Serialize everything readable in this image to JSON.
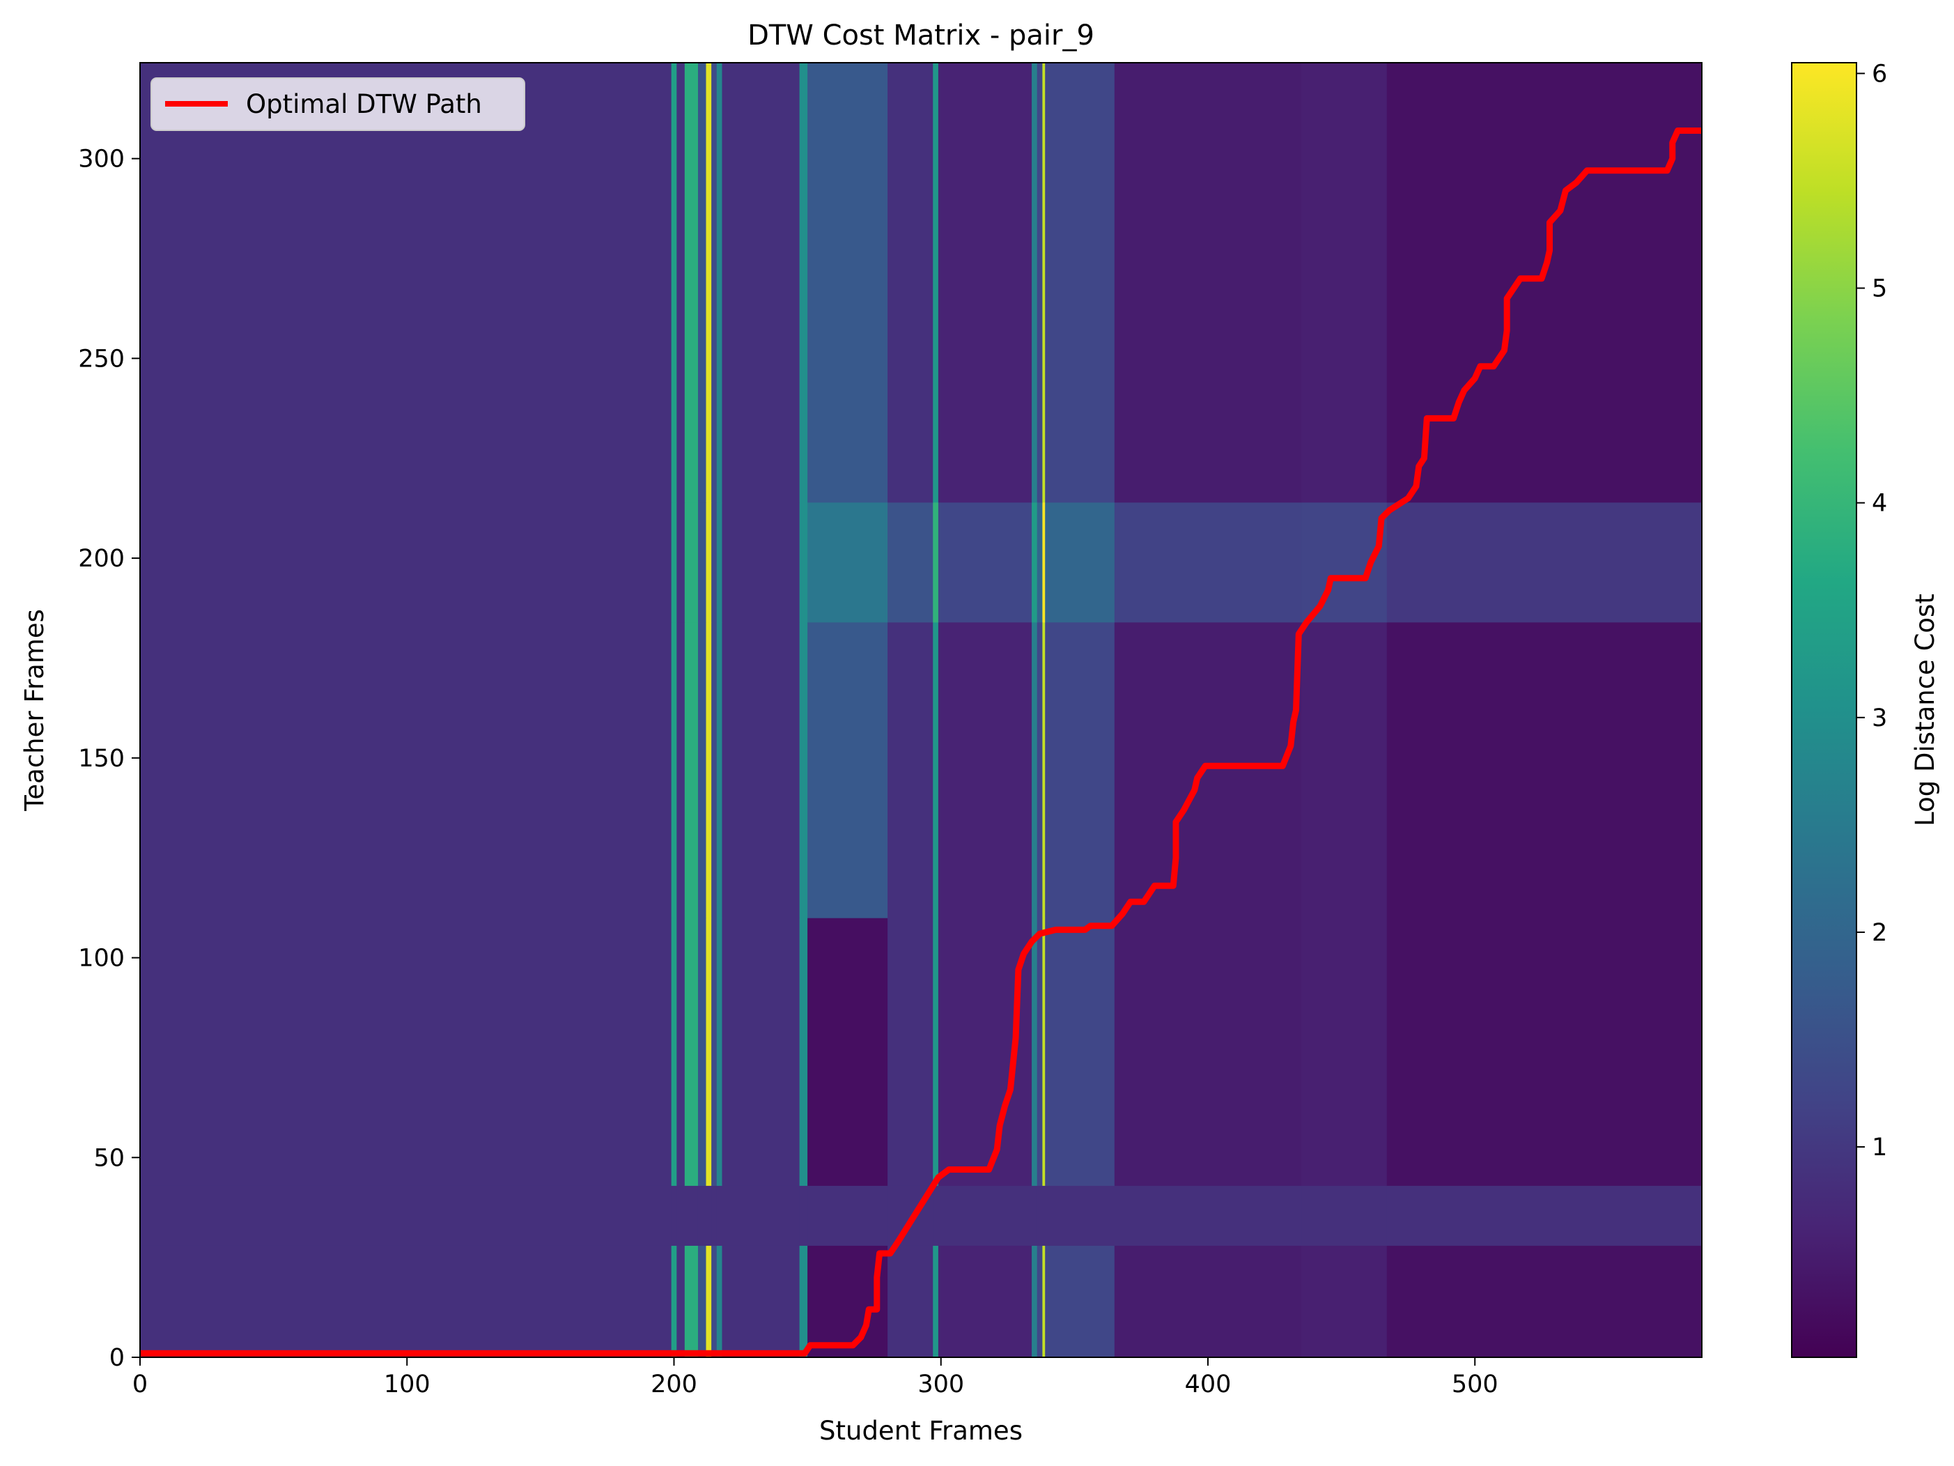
{
  "chart_data": {
    "type": "heatmap",
    "title": "DTW Cost Matrix - pair_9",
    "xlabel": "Student Frames",
    "ylabel": "Teacher Frames",
    "xlim": [
      0,
      585
    ],
    "ylim": [
      0,
      324
    ],
    "x_ticks": [
      0,
      100,
      200,
      300,
      400,
      500
    ],
    "y_ticks": [
      0,
      50,
      100,
      150,
      200,
      250,
      300
    ],
    "colorbar": {
      "label": "Log Distance Cost",
      "colormap": "viridis",
      "range": [
        0.02,
        6.05
      ],
      "ticks": [
        1,
        2,
        3,
        4,
        5,
        6
      ]
    },
    "legend": {
      "position": "top-left",
      "entries": [
        {
          "label": "Optimal DTW Path",
          "color": "#ff0000"
        }
      ]
    },
    "grid": false,
    "heatmap": {
      "description_columns": "approximate log distance cost per student-frame band, by teacher-frame band",
      "teacher_row_bands": [
        {
          "y": [
            0,
            28
          ],
          "level": "low"
        },
        {
          "y": [
            28,
            43
          ],
          "level": "uniform"
        },
        {
          "y": [
            43,
            110
          ],
          "level": "low"
        },
        {
          "y": [
            110,
            184
          ],
          "level": "low"
        },
        {
          "y": [
            184,
            214
          ],
          "level": "mid"
        },
        {
          "y": [
            214,
            324
          ],
          "level": "low"
        }
      ],
      "student_column_costs": [
        {
          "x": [
            0,
            199
          ],
          "cost": 0.85
        },
        {
          "x": [
            199,
            201
          ],
          "cost": 3.4
        },
        {
          "x": [
            201,
            204
          ],
          "cost": 0.9
        },
        {
          "x": [
            204,
            209
          ],
          "cost": 3.8
        },
        {
          "x": [
            209,
            212
          ],
          "cost": 1.6
        },
        {
          "x": [
            212,
            214
          ],
          "cost": 5.8
        },
        {
          "x": [
            214,
            216
          ],
          "cost": 1.4
        },
        {
          "x": [
            216,
            218
          ],
          "cost": 2.8
        },
        {
          "x": [
            218,
            247
          ],
          "cost": 0.85
        },
        {
          "x": [
            247,
            250
          ],
          "cost": 3.0
        },
        {
          "x": [
            250,
            280
          ],
          "cost": 1.7
        },
        {
          "x": [
            280,
            297
          ],
          "cost": 0.85
        },
        {
          "x": [
            297,
            299
          ],
          "cost": 3.2
        },
        {
          "x": [
            299,
            334
          ],
          "cost": 0.6
        },
        {
          "x": [
            334,
            336
          ],
          "cost": 2.6
        },
        {
          "x": [
            336,
            338
          ],
          "cost": 1.3
        },
        {
          "x": [
            338,
            339
          ],
          "cost": 5.5
        },
        {
          "x": [
            339,
            365
          ],
          "cost": 1.3
        },
        {
          "x": [
            365,
            435
          ],
          "cost": 0.5
        },
        {
          "x": [
            435,
            467
          ],
          "cost": 0.55
        },
        {
          "x": [
            467,
            585
          ],
          "cost": 0.3
        }
      ]
    },
    "path": {
      "label": "Optimal DTW Path",
      "color": "#ff0000",
      "points": [
        [
          0,
          1
        ],
        [
          249,
          1
        ],
        [
          251,
          3
        ],
        [
          267,
          3
        ],
        [
          270,
          5
        ],
        [
          272,
          8
        ],
        [
          273,
          12
        ],
        [
          276,
          12
        ],
        [
          276,
          20
        ],
        [
          277,
          26
        ],
        [
          281,
          26
        ],
        [
          284,
          29
        ],
        [
          299,
          45
        ],
        [
          303,
          47
        ],
        [
          318,
          47
        ],
        [
          321,
          52
        ],
        [
          322,
          58
        ],
        [
          324,
          63
        ],
        [
          326,
          67
        ],
        [
          328,
          80
        ],
        [
          329,
          97
        ],
        [
          331,
          101
        ],
        [
          334,
          104
        ],
        [
          337,
          106
        ],
        [
          343,
          107
        ],
        [
          354,
          107
        ],
        [
          356,
          108
        ],
        [
          364,
          108
        ],
        [
          368,
          111
        ],
        [
          371,
          114
        ],
        [
          376,
          114
        ],
        [
          380,
          118
        ],
        [
          387,
          118
        ],
        [
          388,
          125
        ],
        [
          388,
          134
        ],
        [
          391,
          137
        ],
        [
          395,
          142
        ],
        [
          396,
          145
        ],
        [
          399,
          148
        ],
        [
          428,
          148
        ],
        [
          431,
          153
        ],
        [
          432,
          159
        ],
        [
          433,
          162
        ],
        [
          434,
          181
        ],
        [
          437,
          184
        ],
        [
          442,
          188
        ],
        [
          445,
          192
        ],
        [
          446,
          195
        ],
        [
          459,
          195
        ],
        [
          461,
          199
        ],
        [
          464,
          203
        ],
        [
          465,
          210
        ],
        [
          468,
          212
        ],
        [
          475,
          215
        ],
        [
          478,
          218
        ],
        [
          479,
          223
        ],
        [
          481,
          225
        ],
        [
          482,
          235
        ],
        [
          492,
          235
        ],
        [
          494,
          239
        ],
        [
          496,
          242
        ],
        [
          500,
          245
        ],
        [
          502,
          248
        ],
        [
          507,
          248
        ],
        [
          511,
          252
        ],
        [
          512,
          257
        ],
        [
          512,
          265
        ],
        [
          514,
          267
        ],
        [
          517,
          270
        ],
        [
          525,
          270
        ],
        [
          527,
          274
        ],
        [
          528,
          277
        ],
        [
          528,
          284
        ],
        [
          532,
          287
        ],
        [
          534,
          292
        ],
        [
          538,
          294
        ],
        [
          542,
          297
        ],
        [
          572,
          297
        ],
        [
          574,
          300
        ],
        [
          574,
          304
        ],
        [
          576,
          307
        ],
        [
          585,
          307
        ]
      ]
    }
  }
}
